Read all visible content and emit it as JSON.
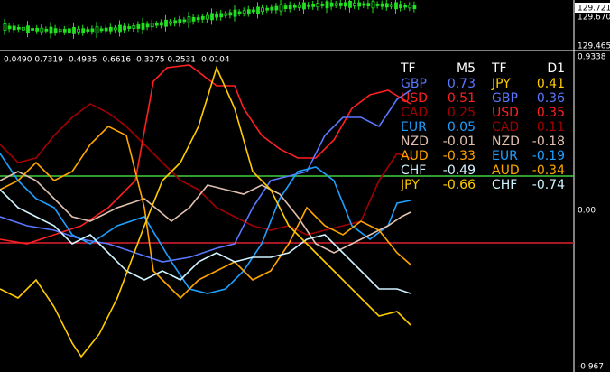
{
  "price_panel": {
    "labels": {
      "current": "129.721",
      "upper": "129.670",
      "lower": "129.465"
    }
  },
  "indicator_panel": {
    "header": "0.0490 0.7319 -0.4935 -0.6616 -0.3275 0.2531 -0.0104",
    "axis_labels": {
      "top": "0.9338",
      "middle": "0.00",
      "bottom": "-0.967"
    },
    "tables": [
      {
        "tf_label": "TF",
        "timeframe": "M5",
        "rows": [
          {
            "currency": "GBP",
            "value": 0.73,
            "color": "#5a78ff"
          },
          {
            "currency": "USD",
            "value": 0.51,
            "color": "#ff2020"
          },
          {
            "currency": "CAD",
            "value": 0.25,
            "color": "#a00000"
          },
          {
            "currency": "EUR",
            "value": 0.05,
            "color": "#1ea0ff"
          },
          {
            "currency": "NZD",
            "value": -0.01,
            "color": "#e0c0b0"
          },
          {
            "currency": "AUD",
            "value": -0.33,
            "color": "#ffa500"
          },
          {
            "currency": "CHF",
            "value": -0.49,
            "color": "#d0f4ff"
          },
          {
            "currency": "JPY",
            "value": -0.66,
            "color": "#ffcc00"
          }
        ]
      },
      {
        "tf_label": "TF",
        "timeframe": "D1",
        "rows": [
          {
            "currency": "JPY",
            "value": 0.41,
            "color": "#ffcc00"
          },
          {
            "currency": "GBP",
            "value": 0.36,
            "color": "#5a78ff"
          },
          {
            "currency": "USD",
            "value": 0.35,
            "color": "#ff2020"
          },
          {
            "currency": "CAD",
            "value": 0.11,
            "color": "#a00000"
          },
          {
            "currency": "NZD",
            "value": -0.18,
            "color": "#e0c0b0"
          },
          {
            "currency": "EUR",
            "value": -0.19,
            "color": "#1ea0ff"
          },
          {
            "currency": "AUD",
            "value": -0.34,
            "color": "#ffa500"
          },
          {
            "currency": "CHF",
            "value": -0.74,
            "color": "#d0f4ff"
          }
        ]
      }
    ]
  }
}
